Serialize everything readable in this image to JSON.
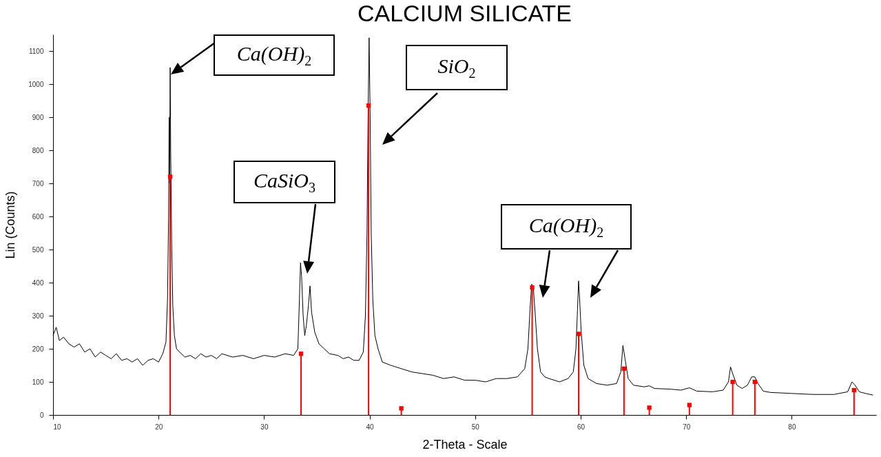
{
  "chart_data": {
    "type": "line",
    "title": "CALCIUM SILICATE",
    "xlabel": "2-Theta - Scale",
    "ylabel": "Lin (Counts)",
    "xlim": [
      10,
      88
    ],
    "ylim": [
      0,
      1150
    ],
    "xticks": [
      10,
      20,
      30,
      40,
      50,
      60,
      70,
      80
    ],
    "yticks": [
      0,
      100,
      200,
      300,
      400,
      500,
      600,
      700,
      800,
      900,
      1000,
      1100
    ],
    "series": [
      {
        "color": "#000000",
        "x": [
          10,
          10.3,
          10.6,
          11,
          11.5,
          12,
          12.5,
          13,
          13.5,
          14,
          14.5,
          15,
          15.5,
          16,
          16.5,
          17,
          17.5,
          18,
          18.5,
          19,
          19.5,
          20,
          20.4,
          20.7,
          20.85,
          20.95,
          21.0,
          21.05,
          21.1,
          21.15,
          21.25,
          21.35,
          21.5,
          21.7,
          22,
          22.5,
          23,
          23.5,
          24,
          24.5,
          25,
          25.5,
          26,
          27,
          28,
          29,
          30,
          31,
          32,
          32.8,
          33.2,
          33.35,
          33.45,
          33.55,
          33.7,
          33.85,
          34.0,
          34.2,
          34.35,
          34.5,
          34.8,
          35.2,
          35.7,
          36.2,
          37,
          37.5,
          38,
          38.5,
          39,
          39.4,
          39.6,
          39.75,
          39.85,
          39.95,
          40.05,
          40.15,
          40.3,
          40.5,
          40.8,
          41.2,
          42,
          43,
          44,
          45,
          46,
          47,
          48,
          49,
          50,
          51,
          52,
          53,
          54,
          54.7,
          55.0,
          55.2,
          55.35,
          55.5,
          55.7,
          55.9,
          56.2,
          56.6,
          57,
          58,
          58.8,
          59.3,
          59.55,
          59.7,
          59.8,
          59.9,
          60.05,
          60.3,
          60.7,
          61.5,
          62.5,
          63.4,
          63.8,
          64.0,
          64.2,
          64.5,
          65,
          66,
          66.5,
          67,
          68.5,
          69.5,
          70.3,
          71,
          72.5,
          73.5,
          74.0,
          74.2,
          74.4,
          74.8,
          75.3,
          75.8,
          76.2,
          76.5,
          76.8,
          77.3,
          78,
          80,
          82,
          84,
          85.3,
          85.7,
          86,
          86.4,
          87,
          87.7
        ],
        "values": [
          240,
          265,
          225,
          235,
          215,
          205,
          215,
          190,
          200,
          175,
          190,
          180,
          170,
          185,
          165,
          170,
          160,
          170,
          150,
          165,
          170,
          160,
          185,
          220,
          350,
          600,
          900,
          700,
          1050,
          800,
          500,
          330,
          240,
          200,
          190,
          175,
          180,
          170,
          185,
          175,
          180,
          170,
          185,
          175,
          180,
          170,
          180,
          175,
          185,
          180,
          200,
          350,
          460,
          420,
          300,
          240,
          270,
          330,
          390,
          310,
          250,
          215,
          200,
          185,
          180,
          170,
          175,
          165,
          165,
          190,
          300,
          550,
          900,
          1140,
          900,
          550,
          350,
          240,
          200,
          160,
          150,
          140,
          130,
          125,
          120,
          110,
          115,
          105,
          105,
          100,
          110,
          110,
          115,
          140,
          200,
          320,
          395,
          390,
          300,
          200,
          130,
          115,
          110,
          100,
          110,
          130,
          200,
          320,
          405,
          350,
          250,
          150,
          110,
          95,
          90,
          95,
          130,
          210,
          170,
          110,
          90,
          85,
          88,
          80,
          78,
          75,
          82,
          72,
          70,
          75,
          100,
          145,
          125,
          90,
          80,
          90,
          115,
          115,
          95,
          72,
          68,
          65,
          62,
          62,
          70,
          100,
          90,
          70,
          65,
          60
        ]
      },
      {
        "type": "lollipop",
        "color": "#ff0000",
        "marker": "square",
        "x": [
          21.1,
          33.5,
          39.9,
          43.0,
          55.4,
          59.8,
          64.1,
          66.5,
          70.3,
          74.4,
          76.5,
          85.9
        ],
        "values": [
          720,
          185,
          935,
          20,
          385,
          245,
          140,
          22,
          30,
          100,
          100,
          75
        ]
      }
    ],
    "annotations": [
      "Ca(OH)$_{2}$",
      "SiO$_{2}$",
      "CaSiO$_{3}$",
      "Ca(OH)$_{2}$"
    ]
  }
}
